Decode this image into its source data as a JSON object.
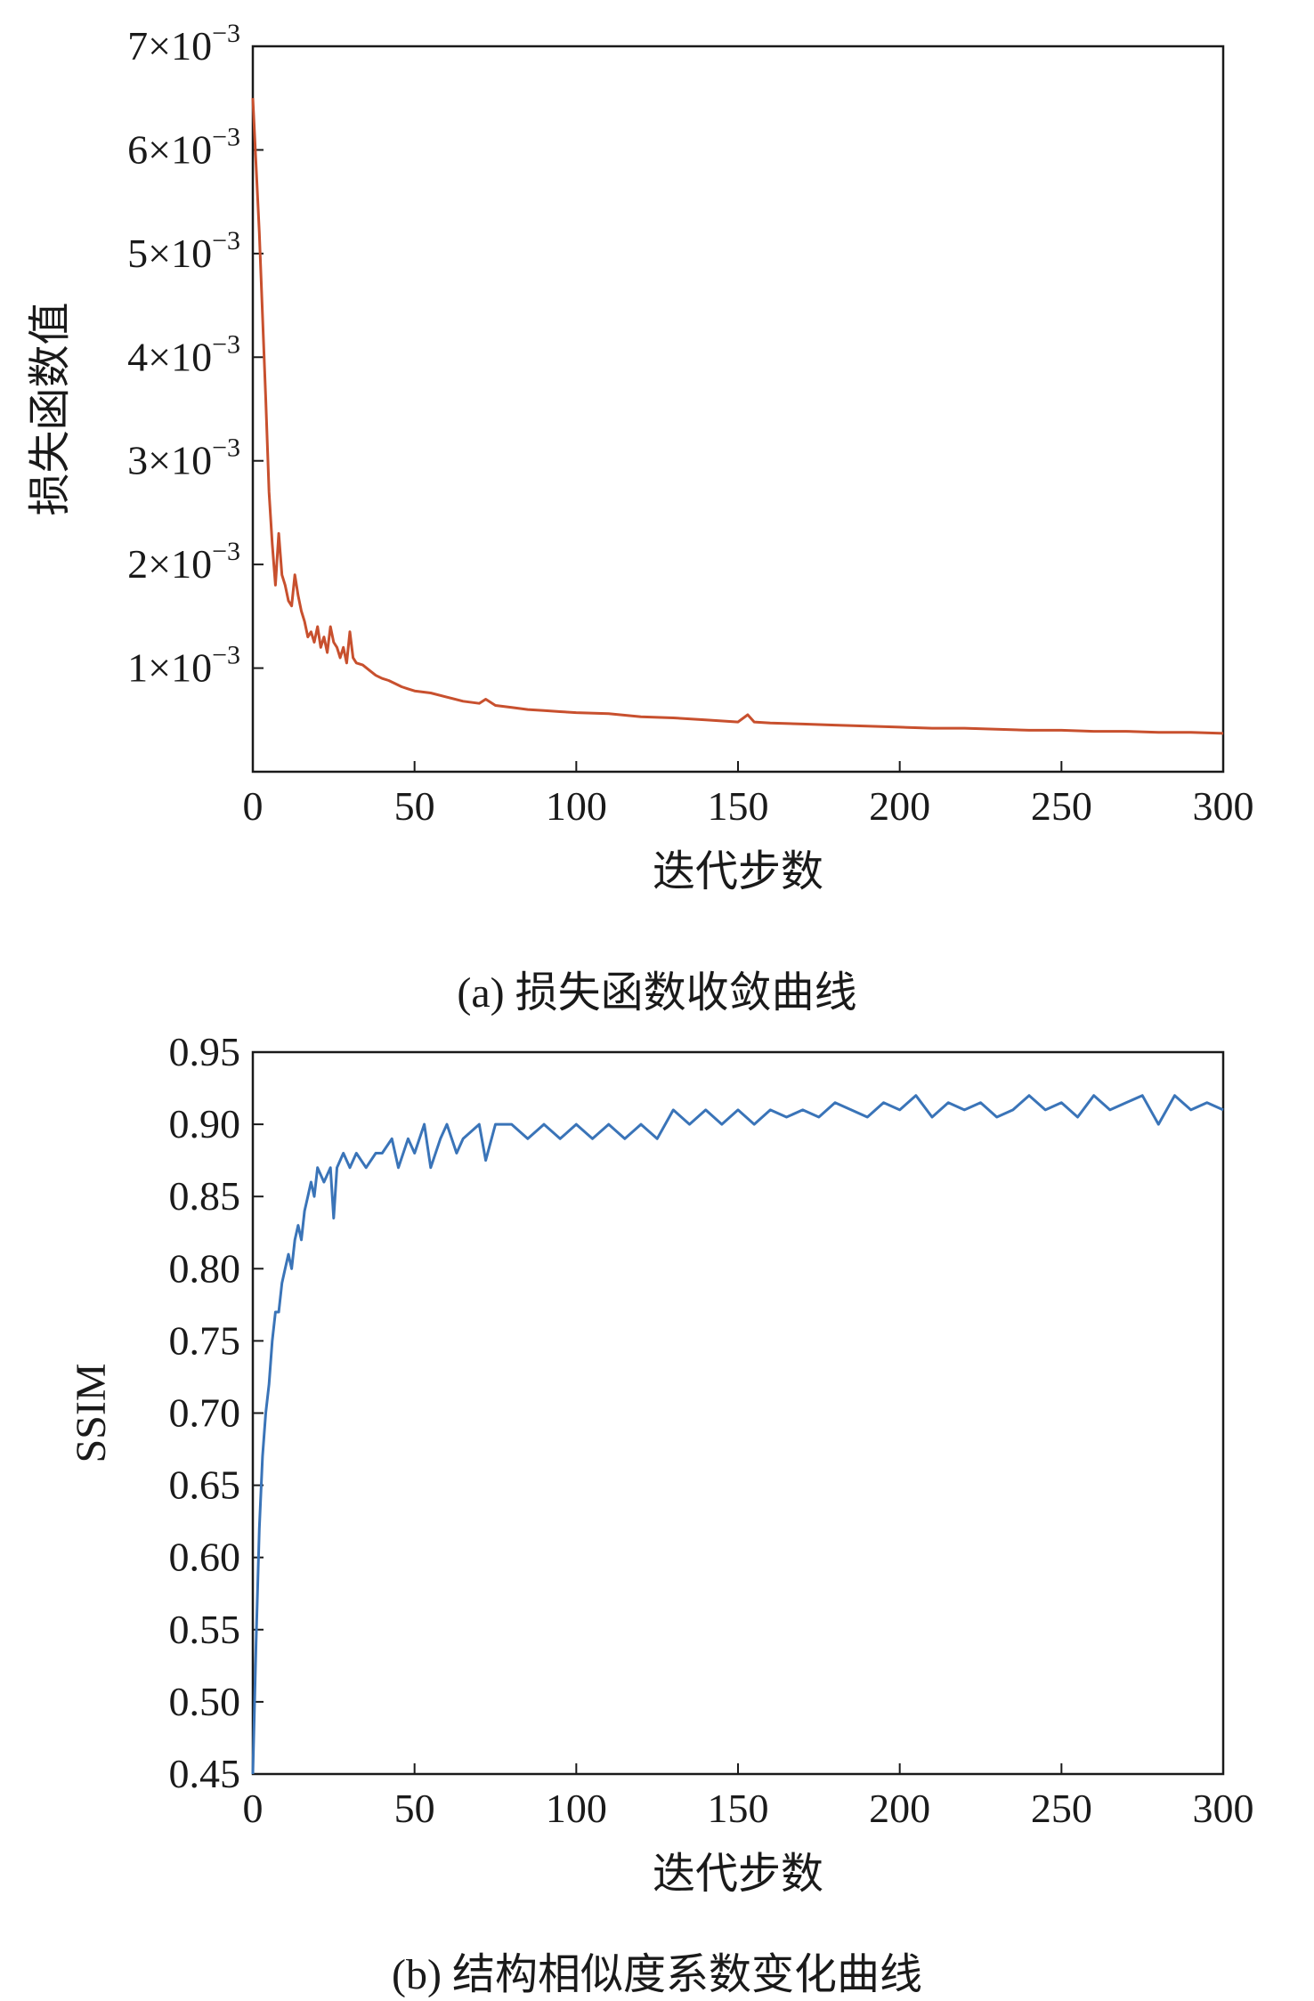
{
  "chart_data": [
    {
      "id": "a",
      "type": "line",
      "caption": "(a) 损失函数收敛曲线",
      "xlabel": "迭代步数",
      "ylabel": "损失函数值",
      "xlim": [
        0,
        300
      ],
      "ylim": [
        0,
        0.007
      ],
      "x_ticks": [
        0,
        50,
        100,
        150,
        200,
        250,
        300
      ],
      "y_ticks": [
        {
          "value": 0.001,
          "mantissa": "1",
          "times": "×10",
          "exp": "−3"
        },
        {
          "value": 0.002,
          "mantissa": "2",
          "times": "×10",
          "exp": "−3"
        },
        {
          "value": 0.003,
          "mantissa": "3",
          "times": "×10",
          "exp": "−3"
        },
        {
          "value": 0.004,
          "mantissa": "4",
          "times": "×10",
          "exp": "−3"
        },
        {
          "value": 0.005,
          "mantissa": "5",
          "times": "×10",
          "exp": "−3"
        },
        {
          "value": 0.006,
          "mantissa": "6",
          "times": "×10",
          "exp": "−3"
        },
        {
          "value": 0.007,
          "mantissa": "7",
          "times": "×10",
          "exp": "−3"
        }
      ],
      "grid": false,
      "series": [
        {
          "color": "#c8502e",
          "points": [
            [
              0,
              0.0065
            ],
            [
              2,
              0.0052
            ],
            [
              4,
              0.0036
            ],
            [
              5,
              0.0027
            ],
            [
              6,
              0.0022
            ],
            [
              7,
              0.0018
            ],
            [
              8,
              0.0023
            ],
            [
              9,
              0.0019
            ],
            [
              10,
              0.0018
            ],
            [
              11,
              0.00165
            ],
            [
              12,
              0.0016
            ],
            [
              13,
              0.0019
            ],
            [
              14,
              0.0017
            ],
            [
              15,
              0.00155
            ],
            [
              16,
              0.00145
            ],
            [
              17,
              0.0013
            ],
            [
              18,
              0.00135
            ],
            [
              19,
              0.00125
            ],
            [
              20,
              0.0014
            ],
            [
              21,
              0.0012
            ],
            [
              22,
              0.0013
            ],
            [
              23,
              0.00115
            ],
            [
              24,
              0.0014
            ],
            [
              25,
              0.00125
            ],
            [
              26,
              0.0012
            ],
            [
              27,
              0.0011
            ],
            [
              28,
              0.0012
            ],
            [
              29,
              0.00105
            ],
            [
              30,
              0.00135
            ],
            [
              31,
              0.0011
            ],
            [
              32,
              0.00105
            ],
            [
              34,
              0.00103
            ],
            [
              36,
              0.00098
            ],
            [
              38,
              0.00093
            ],
            [
              40,
              0.0009
            ],
            [
              42,
              0.00088
            ],
            [
              44,
              0.00085
            ],
            [
              46,
              0.00082
            ],
            [
              48,
              0.0008
            ],
            [
              50,
              0.00078
            ],
            [
              55,
              0.00076
            ],
            [
              60,
              0.00072
            ],
            [
              65,
              0.00068
            ],
            [
              70,
              0.00066
            ],
            [
              72,
              0.0007
            ],
            [
              75,
              0.00064
            ],
            [
              80,
              0.00062
            ],
            [
              85,
              0.0006
            ],
            [
              90,
              0.00059
            ],
            [
              95,
              0.00058
            ],
            [
              100,
              0.00057
            ],
            [
              110,
              0.00056
            ],
            [
              120,
              0.00053
            ],
            [
              130,
              0.00052
            ],
            [
              140,
              0.0005
            ],
            [
              150,
              0.00048
            ],
            [
              153,
              0.00055
            ],
            [
              155,
              0.00048
            ],
            [
              160,
              0.00047
            ],
            [
              170,
              0.00046
            ],
            [
              180,
              0.00045
            ],
            [
              190,
              0.00044
            ],
            [
              200,
              0.00043
            ],
            [
              210,
              0.00042
            ],
            [
              220,
              0.00042
            ],
            [
              230,
              0.00041
            ],
            [
              240,
              0.0004
            ],
            [
              250,
              0.0004
            ],
            [
              260,
              0.00039
            ],
            [
              270,
              0.00039
            ],
            [
              280,
              0.00038
            ],
            [
              290,
              0.00038
            ],
            [
              300,
              0.00037
            ]
          ]
        }
      ]
    },
    {
      "id": "b",
      "type": "line",
      "caption": "(b) 结构相似度系数变化曲线",
      "xlabel": "迭代步数",
      "ylabel": "SSIM",
      "xlim": [
        0,
        300
      ],
      "ylim": [
        0.45,
        0.95
      ],
      "x_ticks": [
        0,
        50,
        100,
        150,
        200,
        250,
        300
      ],
      "y_ticks": [
        "0.45",
        "0.50",
        "0.55",
        "0.60",
        "0.65",
        "0.70",
        "0.75",
        "0.80",
        "0.85",
        "0.90",
        "0.95"
      ],
      "grid": false,
      "series": [
        {
          "color": "#3a74b8",
          "points": [
            [
              0,
              0.45
            ],
            [
              1,
              0.54
            ],
            [
              2,
              0.62
            ],
            [
              3,
              0.67
            ],
            [
              4,
              0.7
            ],
            [
              5,
              0.72
            ],
            [
              6,
              0.75
            ],
            [
              7,
              0.77
            ],
            [
              8,
              0.77
            ],
            [
              9,
              0.79
            ],
            [
              10,
              0.8
            ],
            [
              11,
              0.81
            ],
            [
              12,
              0.8
            ],
            [
              13,
              0.82
            ],
            [
              14,
              0.83
            ],
            [
              15,
              0.82
            ],
            [
              16,
              0.84
            ],
            [
              17,
              0.85
            ],
            [
              18,
              0.86
            ],
            [
              19,
              0.85
            ],
            [
              20,
              0.87
            ],
            [
              22,
              0.86
            ],
            [
              24,
              0.87
            ],
            [
              25,
              0.835
            ],
            [
              26,
              0.87
            ],
            [
              28,
              0.88
            ],
            [
              30,
              0.87
            ],
            [
              32,
              0.88
            ],
            [
              35,
              0.87
            ],
            [
              38,
              0.88
            ],
            [
              40,
              0.88
            ],
            [
              43,
              0.89
            ],
            [
              45,
              0.87
            ],
            [
              48,
              0.89
            ],
            [
              50,
              0.88
            ],
            [
              53,
              0.9
            ],
            [
              55,
              0.87
            ],
            [
              58,
              0.89
            ],
            [
              60,
              0.9
            ],
            [
              63,
              0.88
            ],
            [
              65,
              0.89
            ],
            [
              70,
              0.9
            ],
            [
              72,
              0.875
            ],
            [
              75,
              0.9
            ],
            [
              80,
              0.9
            ],
            [
              85,
              0.89
            ],
            [
              90,
              0.9
            ],
            [
              95,
              0.89
            ],
            [
              100,
              0.9
            ],
            [
              105,
              0.89
            ],
            [
              110,
              0.9
            ],
            [
              115,
              0.89
            ],
            [
              120,
              0.9
            ],
            [
              125,
              0.89
            ],
            [
              130,
              0.91
            ],
            [
              135,
              0.9
            ],
            [
              140,
              0.91
            ],
            [
              145,
              0.9
            ],
            [
              150,
              0.91
            ],
            [
              155,
              0.9
            ],
            [
              160,
              0.91
            ],
            [
              165,
              0.905
            ],
            [
              170,
              0.91
            ],
            [
              175,
              0.905
            ],
            [
              180,
              0.915
            ],
            [
              185,
              0.91
            ],
            [
              190,
              0.905
            ],
            [
              195,
              0.915
            ],
            [
              200,
              0.91
            ],
            [
              205,
              0.92
            ],
            [
              210,
              0.905
            ],
            [
              215,
              0.915
            ],
            [
              220,
              0.91
            ],
            [
              225,
              0.915
            ],
            [
              230,
              0.905
            ],
            [
              235,
              0.91
            ],
            [
              240,
              0.92
            ],
            [
              245,
              0.91
            ],
            [
              250,
              0.915
            ],
            [
              255,
              0.905
            ],
            [
              260,
              0.92
            ],
            [
              265,
              0.91
            ],
            [
              270,
              0.915
            ],
            [
              275,
              0.92
            ],
            [
              280,
              0.9
            ],
            [
              285,
              0.92
            ],
            [
              290,
              0.91
            ],
            [
              295,
              0.915
            ],
            [
              300,
              0.91
            ]
          ]
        }
      ]
    }
  ]
}
